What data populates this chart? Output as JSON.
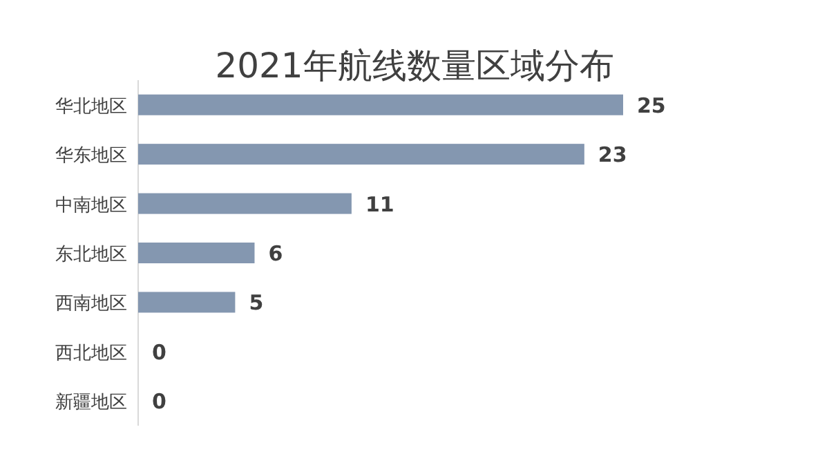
{
  "chart_data": {
    "type": "bar",
    "orientation": "horizontal",
    "title": "2021年航线数量区域分布",
    "categories": [
      "华北地区",
      "华东地区",
      "中南地区",
      "东北地区",
      "西南地区",
      "西北地区",
      "新疆地区"
    ],
    "values": [
      25,
      23,
      11,
      6,
      5,
      0,
      0
    ],
    "color": "#8497b0",
    "data_labels": true
  }
}
